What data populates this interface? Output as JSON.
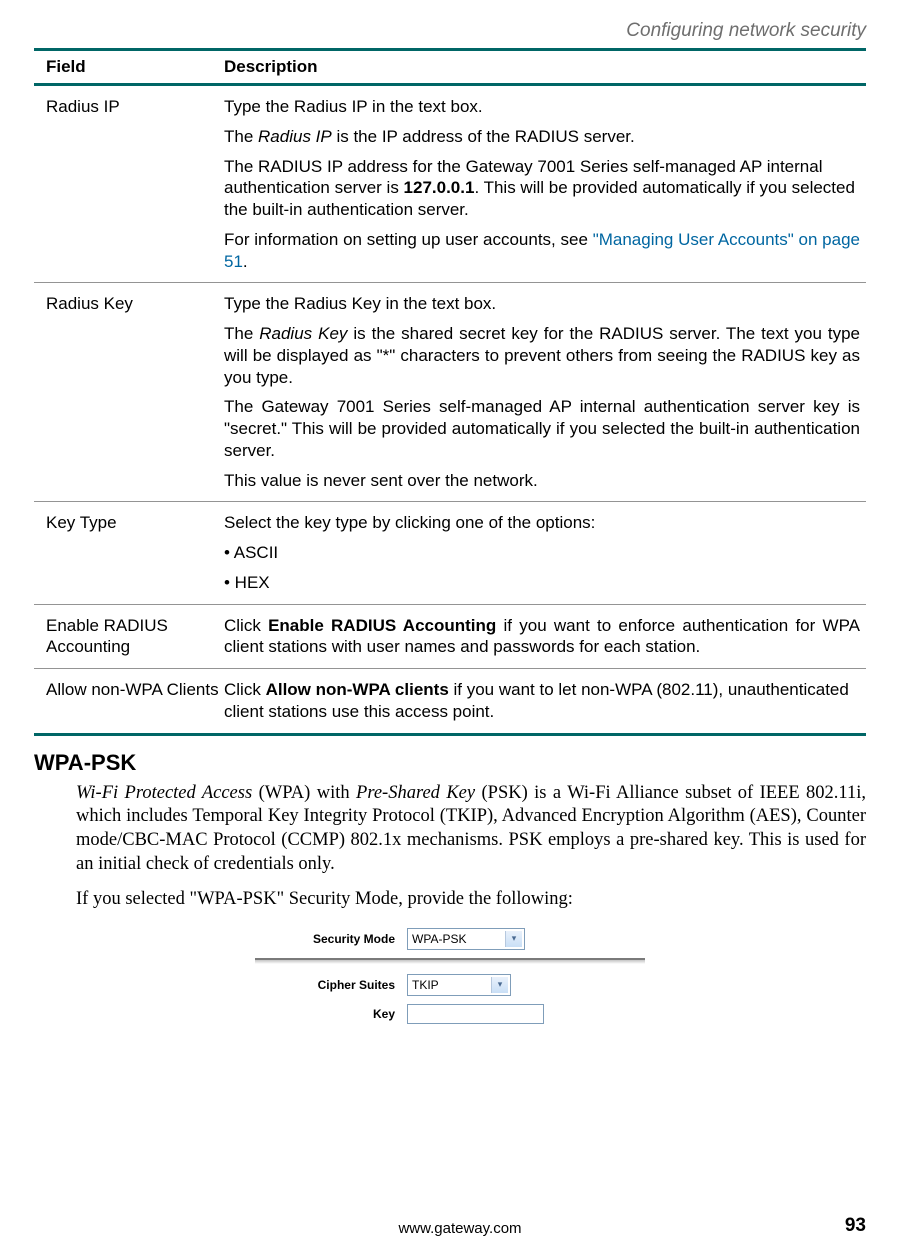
{
  "header": {
    "section_title": "Configuring network security"
  },
  "table": {
    "columns": {
      "field": "Field",
      "description": "Description"
    },
    "rows": [
      {
        "field": "Radius IP",
        "desc": {
          "p1": "Type the Radius IP in the text box.",
          "p2_pre": "The ",
          "p2_em": "Radius IP",
          "p2_post": " is the IP address of the RADIUS server.",
          "p3_a": "The RADIUS IP address for the Gateway 7001 Series self-managed AP internal authentication server is ",
          "p3_b": "127.0.0.1",
          "p3_c": ". This will be provided automatically if you selected the built-in authentication server.",
          "p4_a": "For information on setting up user accounts, see ",
          "p4_link": "\"Managing User Accounts\" on page 51",
          "p4_b": "."
        }
      },
      {
        "field": "Radius Key",
        "desc": {
          "p1": "Type the Radius Key in the text box.",
          "p2_pre": "The ",
          "p2_em": "Radius Key",
          "p2_post": " is the shared secret key for the RADIUS server. The text you type will be displayed as \"*\" characters to prevent others from seeing the RADIUS key as you type.",
          "p3": "The Gateway 7001 Series self-managed AP internal authentication server key is \"secret.\" This will be provided automatically if you selected the built-in authentication server.",
          "p4": "This value is never sent over the network."
        }
      },
      {
        "field": "Key Type",
        "desc": {
          "p1": "Select the key type by clicking one of the options:",
          "b1": "• ASCII",
          "b2": "• HEX"
        }
      },
      {
        "field": "Enable RADIUS Accounting",
        "desc": {
          "p1_a": "Click ",
          "p1_b": "Enable RADIUS Accounting",
          "p1_c": " if you want to enforce authentication for WPA client stations with user names and passwords for each station."
        }
      },
      {
        "field": "Allow non-WPA Clients",
        "desc": {
          "p1_a": "Click ",
          "p1_b": "Allow non-WPA clients",
          "p1_c": " if you want to let non-WPA (802.11), unauthenticated client stations use this access point."
        }
      }
    ]
  },
  "section": {
    "heading": "WPA-PSK",
    "para1_a": "Wi-Fi Protected Access",
    "para1_b": " (WPA) with ",
    "para1_c": "Pre-Shared Key",
    "para1_d": " (PSK) is a Wi-Fi Alliance subset of IEEE 802.11i, which includes Temporal Key Integrity Protocol (TKIP), Advanced Encryption Algorithm (AES), Counter mode/CBC-MAC Protocol (CCMP) 802.1x mechanisms. PSK employs a pre-shared key. This is used for an initial check of credentials only.",
    "para2": "If you selected \"WPA-PSK\" Security Mode, provide the following:"
  },
  "screenshot": {
    "security_mode_label": "Security Mode",
    "security_mode_value": "WPA-PSK",
    "cipher_label": "Cipher Suites",
    "cipher_value": "TKIP",
    "key_label": "Key"
  },
  "footer": {
    "url": "www.gateway.com",
    "page": "93"
  },
  "style": {
    "accent_green": "#006666",
    "gray_rule": "#949494",
    "header_gray": "#6e6e6e",
    "link_color": "#0066a1",
    "ui_border": "#7f9db9"
  }
}
